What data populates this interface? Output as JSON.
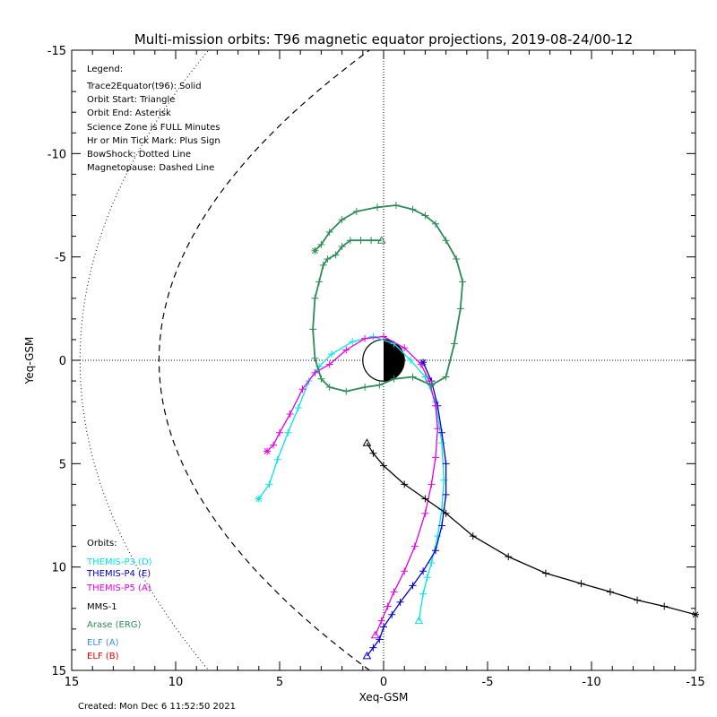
{
  "chart_data": {
    "type": "line",
    "title": "Multi-mission orbits: T96 magnetic equator projections, 2019-08-24/00-12",
    "xlabel": "Xeq-GSM",
    "ylabel": "Yeq-GSM",
    "xlim": [
      15,
      -15
    ],
    "ylim": [
      -15,
      15
    ],
    "x_ticks": [
      15,
      10,
      5,
      0,
      -5,
      -10,
      -15
    ],
    "y_ticks": [
      -15,
      -10,
      -5,
      0,
      5,
      10,
      15
    ],
    "tick_labels_x": [
      "15",
      "10",
      "5",
      "0",
      "-5",
      "-10",
      "-15"
    ],
    "tick_labels_y": [
      "-15",
      "-10",
      "-5",
      "0",
      "5",
      "10",
      "15"
    ],
    "grid": "dotted zero lines",
    "legend": {
      "heading": "Legend:",
      "lines": [
        "Trace2Equator(t96): Solid",
        "Orbit Start: Triangle",
        "Orbit End: Asterisk",
        "Science Zone is FULL Minutes",
        "Hr or Min Tick Mark: Plus Sign",
        "BowShock: Dotted Line",
        "Magnetopause: Dashed Line"
      ]
    },
    "orbits_heading": "Orbits:",
    "series": [
      {
        "name": "THEMIS-P3 (D)",
        "color": "#00e5e5",
        "points": [
          [
            -1.7,
            12.6
          ],
          [
            -1.9,
            11.3
          ],
          [
            -2.1,
            10.5
          ],
          [
            -2.3,
            9.8
          ],
          [
            -2.6,
            8.5
          ],
          [
            -2.8,
            7.2
          ],
          [
            -2.9,
            5.8
          ],
          [
            -2.8,
            4.0
          ],
          [
            -2.5,
            2.0
          ],
          [
            -2.0,
            0.8
          ],
          [
            -1.3,
            0.0
          ],
          [
            -0.5,
            -0.8
          ],
          [
            0.5,
            -1.15
          ],
          [
            1.5,
            -0.9
          ],
          [
            2.5,
            -0.3
          ],
          [
            3.1,
            0.3
          ],
          [
            3.6,
            1.0
          ],
          [
            4.1,
            2.3
          ],
          [
            4.6,
            3.5
          ],
          [
            5.1,
            4.8
          ],
          [
            5.5,
            6.0
          ],
          [
            6.0,
            6.7
          ]
        ],
        "start_index": 0,
        "end_index": 21
      },
      {
        "name": "THEMIS-P4 (E)",
        "color": "#0000c8",
        "points": [
          [
            0.8,
            14.3
          ],
          [
            0.5,
            13.9
          ],
          [
            0.2,
            13.5
          ],
          [
            0.0,
            12.9
          ],
          [
            -0.4,
            12.3
          ],
          [
            -0.8,
            11.7
          ],
          [
            -1.4,
            10.9
          ],
          [
            -1.9,
            10.2
          ],
          [
            -2.5,
            9.2
          ],
          [
            -2.8,
            8.0
          ],
          [
            -3.0,
            6.5
          ],
          [
            -3.0,
            5.0
          ],
          [
            -2.8,
            3.5
          ],
          [
            -2.6,
            2.2
          ],
          [
            -2.3,
            1.0
          ],
          [
            -1.9,
            0.1
          ]
        ],
        "start_index": 0,
        "end_index": 15
      },
      {
        "name": "THEMIS-P5 (A)",
        "color": "#e600e6",
        "points": [
          [
            0.4,
            13.3
          ],
          [
            0.1,
            12.6
          ],
          [
            -0.2,
            11.9
          ],
          [
            -0.5,
            11.2
          ],
          [
            -1.0,
            10.2
          ],
          [
            -1.5,
            9.0
          ],
          [
            -2.0,
            7.4
          ],
          [
            -2.3,
            6.0
          ],
          [
            -2.5,
            4.7
          ],
          [
            -2.6,
            3.3
          ],
          [
            -2.5,
            2.2
          ],
          [
            -2.2,
            1.0
          ],
          [
            -1.8,
            0.2
          ],
          [
            -1.0,
            -0.6
          ],
          [
            0.0,
            -1.15
          ],
          [
            0.9,
            -1.05
          ],
          [
            1.8,
            -0.5
          ],
          [
            2.6,
            0.2
          ],
          [
            3.3,
            0.6
          ],
          [
            3.9,
            1.4
          ],
          [
            4.5,
            2.6
          ],
          [
            5.0,
            3.5
          ],
          [
            5.3,
            4.1
          ],
          [
            5.6,
            4.4
          ]
        ],
        "start_index": 0,
        "end_index": 23
      },
      {
        "name": "MMS-1",
        "color": "#000000",
        "points": [
          [
            0.8,
            4.0
          ],
          [
            0.5,
            4.5
          ],
          [
            0.0,
            5.1
          ],
          [
            -1.0,
            6.0
          ],
          [
            -2.0,
            6.7
          ],
          [
            -3.0,
            7.4
          ],
          [
            -4.3,
            8.5
          ],
          [
            -6.0,
            9.5
          ],
          [
            -7.8,
            10.3
          ],
          [
            -9.5,
            10.8
          ],
          [
            -10.9,
            11.2
          ],
          [
            -12.2,
            11.6
          ],
          [
            -13.5,
            11.9
          ],
          [
            -15.0,
            12.3
          ]
        ],
        "start_index": 0,
        "end_index": 13
      },
      {
        "name": "Arase (ERG)",
        "color": "#2e8b57",
        "points": [
          [
            0.1,
            -5.8
          ],
          [
            0.6,
            -5.8
          ],
          [
            1.1,
            -5.8
          ],
          [
            1.6,
            -5.8
          ],
          [
            2.0,
            -5.5
          ],
          [
            2.3,
            -5.1
          ],
          [
            2.7,
            -4.9
          ],
          [
            2.9,
            -4.6
          ],
          [
            3.1,
            -3.8
          ],
          [
            3.3,
            -3.0
          ],
          [
            3.4,
            -1.5
          ],
          [
            3.3,
            -0.1
          ],
          [
            3.0,
            0.9
          ],
          [
            2.6,
            1.3
          ],
          [
            1.8,
            1.5
          ],
          [
            0.9,
            1.3
          ],
          [
            0.2,
            1.2
          ],
          [
            -0.5,
            0.9
          ],
          [
            -1.4,
            0.8
          ],
          [
            -2.3,
            1.2
          ],
          [
            -3.0,
            0.8
          ],
          [
            -3.4,
            -0.8
          ],
          [
            -3.7,
            -2.5
          ],
          [
            -3.8,
            -3.8
          ],
          [
            -3.5,
            -4.9
          ],
          [
            -3.0,
            -5.8
          ],
          [
            -2.5,
            -6.6
          ],
          [
            -2.0,
            -7.0
          ],
          [
            -1.4,
            -7.3
          ],
          [
            -0.6,
            -7.5
          ],
          [
            0.3,
            -7.4
          ],
          [
            1.3,
            -7.2
          ],
          [
            2.0,
            -6.8
          ],
          [
            2.6,
            -6.2
          ],
          [
            3.0,
            -5.6
          ],
          [
            3.3,
            -5.3
          ]
        ],
        "start_index": 0,
        "end_index": 35
      },
      {
        "name": "ELF (A)",
        "color": "#3c8cf0",
        "points": [],
        "start_index": null,
        "end_index": null
      },
      {
        "name": "ELF (B)",
        "color": "#e00000",
        "points": [],
        "start_index": null,
        "end_index": null
      }
    ],
    "created": "Created: Mon Dec  6 11:52:50 2021"
  }
}
